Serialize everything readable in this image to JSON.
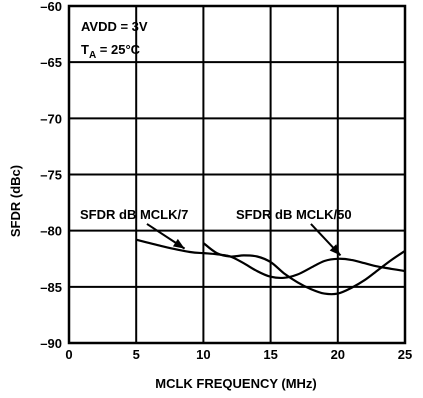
{
  "chart_data": {
    "type": "line",
    "xlabel": "MCLK FREQUENCY (MHz)",
    "ylabel": "SFDR (dBc)",
    "xlim": [
      0,
      25
    ],
    "ylim": [
      -90,
      -60
    ],
    "x_ticks": [
      0,
      5,
      10,
      15,
      20,
      25
    ],
    "y_ticks": [
      -60,
      -65,
      -70,
      -75,
      -80,
      -85,
      -90
    ],
    "x_tick_labels": [
      "0",
      "5",
      "10",
      "15",
      "20",
      "25"
    ],
    "y_tick_labels": [
      "–60",
      "–65",
      "–70",
      "–75",
      "–80",
      "–85",
      "–90"
    ],
    "grid": true,
    "conditions": {
      "avdd": "AVDD = 3V",
      "ta_main": "T",
      "ta_sub": "A",
      "ta_value": " = 25°C"
    },
    "series": [
      {
        "name": "SFDR dB MCLK/7",
        "x": [
          5,
          7,
          9,
          10,
          11,
          12,
          13,
          14,
          15,
          16,
          17,
          18,
          19,
          20,
          21,
          22,
          23,
          24,
          25
        ],
        "y": [
          -80.8,
          -81.4,
          -81.9,
          -82.0,
          -82.1,
          -82.3,
          -82.9,
          -83.6,
          -84.1,
          -84.2,
          -83.9,
          -83.3,
          -82.7,
          -82.5,
          -82.6,
          -82.9,
          -83.2,
          -83.4,
          -83.6
        ]
      },
      {
        "name": "SFDR dB MCLK/50",
        "x": [
          10,
          11,
          12,
          13,
          14,
          15,
          16,
          17,
          18,
          19,
          20,
          21,
          22,
          23,
          24,
          25
        ],
        "y": [
          -81.1,
          -82.0,
          -82.3,
          -82.2,
          -82.3,
          -82.8,
          -83.8,
          -84.6,
          -85.2,
          -85.6,
          -85.6,
          -85.1,
          -84.4,
          -83.5,
          -82.6,
          -81.8
        ]
      }
    ]
  }
}
